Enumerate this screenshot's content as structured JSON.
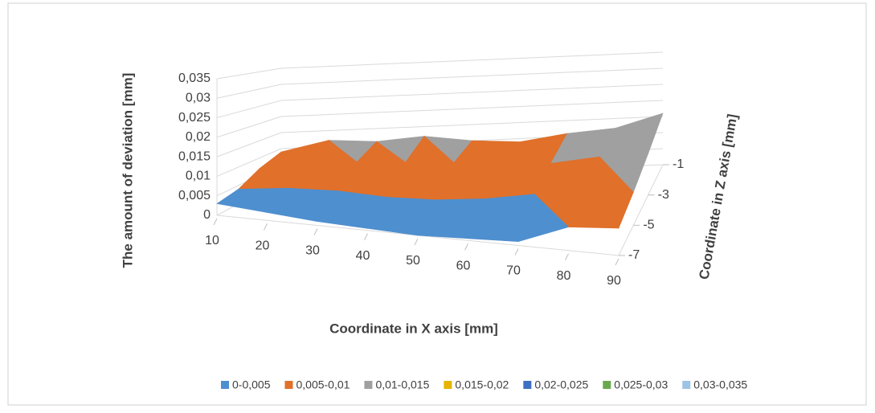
{
  "chart_data": {
    "type": "surface",
    "y_label": "The amount of deviation [mm]",
    "x_label": "Coordinate in X axis [mm]",
    "z_label": "Coordinate in Z axis [mm]",
    "x": [
      10,
      20,
      30,
      40,
      50,
      60,
      70,
      80,
      90
    ],
    "z": [
      -1,
      -3,
      -5,
      -7
    ],
    "values": [
      [
        0.009,
        0.012,
        0.011,
        0.012,
        0.01,
        0.009,
        0.011,
        0.012,
        0.016
      ],
      [
        0.007,
        0.008,
        0.009,
        0.009,
        0.009,
        0.008,
        0.009,
        0.011,
        0.012
      ],
      [
        0.004,
        0.005,
        0.005,
        0.004,
        0.004,
        0.005,
        0.007,
        0.008,
        0.009
      ],
      [
        0.003,
        0.002,
        0.001,
        0.0005,
        0,
        0.0005,
        0.001,
        0.006,
        0.007
      ]
    ],
    "ylim": [
      0,
      0.035
    ],
    "yticks": [
      0,
      {
        "value": 0.005,
        "label": "0,005"
      },
      {
        "value": 0.01,
        "label": "0,01"
      },
      {
        "value": 0.015,
        "label": "0,015"
      },
      {
        "value": 0.02,
        "label": "0,02"
      },
      {
        "value": 0.025,
        "label": "0,025"
      },
      {
        "value": 0.03,
        "label": "0,03"
      },
      {
        "value": 0.035,
        "label": "0,035"
      }
    ],
    "bands": [
      {
        "name": "0-0,005",
        "color": "#4e8fcf"
      },
      {
        "name": "0,005-0,01",
        "color": "#e0702a"
      },
      {
        "name": "0,01-0,015",
        "color": "#a0a0a0"
      },
      {
        "name": "0,015-0,02",
        "color": "#e6b400"
      },
      {
        "name": "0,02-0,025",
        "color": "#3f6fc4"
      },
      {
        "name": "0,025-0,03",
        "color": "#6aa84f"
      },
      {
        "name": "0,03-0,035",
        "color": "#9dc3e6"
      }
    ]
  }
}
